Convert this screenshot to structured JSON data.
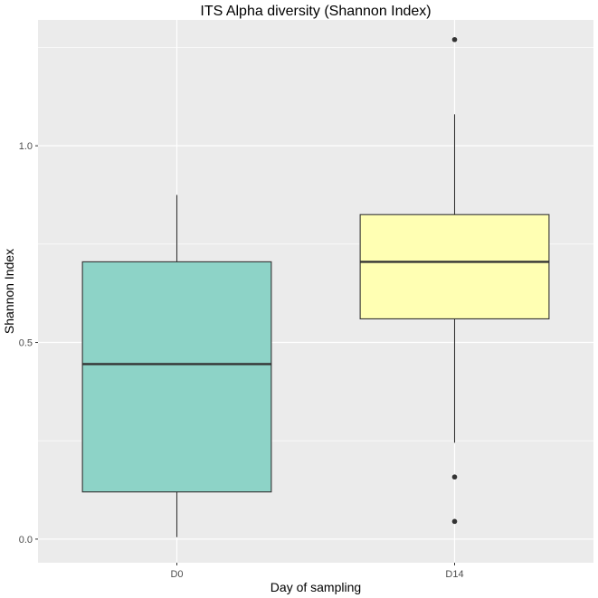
{
  "chart_data": {
    "type": "boxplot",
    "title": "ITS Alpha diversity (Shannon Index)",
    "xlabel": "Day of sampling",
    "ylabel": "Shannon Index",
    "ylim": [
      -0.06,
      1.32
    ],
    "y_ticks": [
      0.0,
      0.5,
      1.0
    ],
    "y_tick_labels": [
      "0.0",
      "0.5",
      "1.0"
    ],
    "categories": [
      "D0",
      "D14"
    ],
    "grid": true,
    "background_color": "#ebebeb",
    "grid_color": "#ffffff",
    "boxes": [
      {
        "category": "D0",
        "fill": "#8dd3c7",
        "min": 0.005,
        "q1": 0.12,
        "median": 0.445,
        "q3": 0.705,
        "max": 0.875,
        "outliers": []
      },
      {
        "category": "D14",
        "fill": "#ffffb3",
        "min": 0.245,
        "q1": 0.56,
        "median": 0.705,
        "q3": 0.825,
        "max": 1.08,
        "outliers": [
          1.27,
          0.158,
          0.045
        ]
      }
    ]
  }
}
